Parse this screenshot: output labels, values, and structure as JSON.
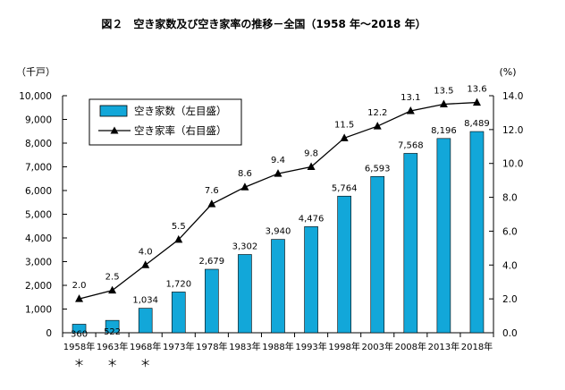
{
  "chart_data": {
    "type": "bar",
    "title": "図２　空き家数及び空き家率の推移－全国（1958 年～2018 年）",
    "ylabel_left": "（千戸）",
    "ylabel_right": "(%)",
    "categories": [
      "1958年",
      "1963年",
      "1968年",
      "1973年",
      "1978年",
      "1983年",
      "1988年",
      "1993年",
      "1998年",
      "2003年",
      "2008年",
      "2013年",
      "2018年"
    ],
    "category_marks": [
      "＊",
      "＊",
      "＊",
      "",
      "",
      "",
      "",
      "",
      "",
      "",
      "",
      "",
      ""
    ],
    "series": [
      {
        "name": "空き家数（左目盛）",
        "type": "bar",
        "axis": "left",
        "color": "#12a7d9",
        "values": [
          360,
          522,
          1034,
          1720,
          2679,
          3302,
          3940,
          4476,
          5764,
          6593,
          7568,
          8196,
          8489
        ],
        "labels": [
          "360",
          "522",
          "1,034",
          "1,720",
          "2,679",
          "3,302",
          "3,940",
          "4,476",
          "5,764",
          "6,593",
          "7,568",
          "8,196",
          "8,489"
        ]
      },
      {
        "name": "空き家率（右目盛）",
        "type": "line",
        "axis": "right",
        "color": "#000000",
        "values": [
          2.0,
          2.5,
          4.0,
          5.5,
          7.6,
          8.6,
          9.4,
          9.8,
          11.5,
          12.2,
          13.1,
          13.5,
          13.6
        ],
        "labels": [
          "2.0",
          "2.5",
          "4.0",
          "5.5",
          "7.6",
          "8.6",
          "9.4",
          "9.8",
          "11.5",
          "12.2",
          "13.1",
          "13.5",
          "13.6"
        ]
      }
    ],
    "ylim_left": [
      0,
      10000
    ],
    "ylim_right": [
      0,
      14
    ],
    "yticks_left": [
      "0",
      "1,000",
      "2,000",
      "3,000",
      "4,000",
      "5,000",
      "6,000",
      "7,000",
      "8,000",
      "9,000",
      "10,000"
    ],
    "yticks_right": [
      "0.0",
      "2.0",
      "4.0",
      "6.0",
      "8.0",
      "10.0",
      "12.0",
      "14.0"
    ],
    "grid": false,
    "legend_position": "top-left"
  }
}
